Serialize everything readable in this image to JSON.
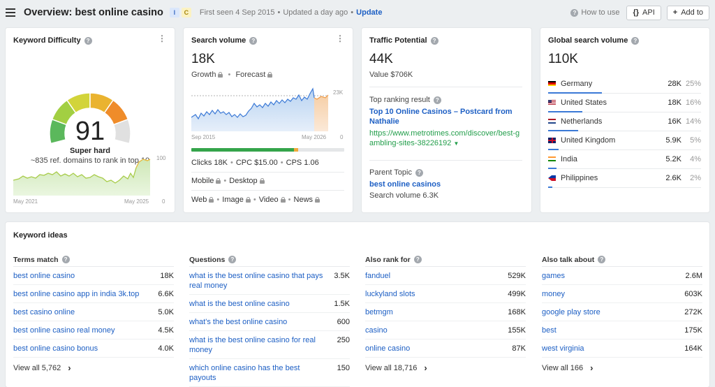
{
  "header": {
    "title": "Overview: best online casino",
    "intent_i": "I",
    "intent_c": "C",
    "first_seen": "First seen 4 Sep 2015",
    "updated": "Updated a day ago",
    "update_link": "Update",
    "how_to": "How to use",
    "api_label": "API",
    "api_glyph": "{}",
    "add_label": "Add to",
    "add_glyph": "+"
  },
  "kd": {
    "title": "Keyword Difficulty",
    "value": "91",
    "label": "Super hard",
    "desc": "~835 ref. domains to rank in top 10",
    "chart_max": "100",
    "chart_min": "0",
    "x_start": "May 2021",
    "x_end": "May 2025",
    "gauge_colors": [
      "#5bb85c",
      "#a2cf42",
      "#d2d43a",
      "#eab32f",
      "#ef8c2a",
      "#e0e0e0"
    ]
  },
  "sv": {
    "title": "Search volume",
    "value": "18K",
    "growth": "Growth",
    "forecast": "Forecast",
    "chart_max": "23K",
    "chart_min": "0",
    "x_start": "Sep 2015",
    "x_end": "May 2026",
    "clicks": "Clicks 18K",
    "cpc": "CPC $15.00",
    "cps": "CPS 1.06",
    "mobile": "Mobile",
    "desktop": "Desktop",
    "web": "Web",
    "image": "Image",
    "video": "Video",
    "news": "News",
    "click_share": {
      "organic": 0.67,
      "paid": 0.03,
      "none": 0.3
    }
  },
  "tp": {
    "title": "Traffic Potential",
    "value": "44K",
    "value_label": "Value $706K",
    "top_result_label": "Top ranking result",
    "top_result_title": "Top 10 Online Casinos – Postcard from Nathalie",
    "top_result_url": "https://www.metrotimes.com/discover/best-gambling-sites-38226192",
    "parent_topic_label": "Parent Topic",
    "parent_topic": "best online casinos",
    "parent_sv": "Search volume 6.3K"
  },
  "gsv": {
    "title": "Global search volume",
    "value": "110K",
    "countries": [
      {
        "name": "Germany",
        "volume": "28K",
        "pct": "25%",
        "share": 0.25,
        "flag": "de"
      },
      {
        "name": "United States",
        "volume": "18K",
        "pct": "16%",
        "share": 0.16,
        "flag": "us"
      },
      {
        "name": "Netherlands",
        "volume": "16K",
        "pct": "14%",
        "share": 0.14,
        "flag": "nl"
      },
      {
        "name": "United Kingdom",
        "volume": "5.9K",
        "pct": "5%",
        "share": 0.05,
        "flag": "gb"
      },
      {
        "name": "India",
        "volume": "5.2K",
        "pct": "4%",
        "share": 0.04,
        "flag": "in"
      },
      {
        "name": "Philippines",
        "volume": "2.6K",
        "pct": "2%",
        "share": 0.02,
        "flag": "ph"
      }
    ]
  },
  "ideas": {
    "title": "Keyword ideas",
    "columns": [
      {
        "heading": "Terms match",
        "rows": [
          {
            "kw": "best online casino",
            "vol": "18K"
          },
          {
            "kw": "best online casino app in india 3k.top",
            "vol": "6.6K"
          },
          {
            "kw": "best casino online",
            "vol": "5.0K"
          },
          {
            "kw": "best online casino real money",
            "vol": "4.5K"
          },
          {
            "kw": "best online casino bonus",
            "vol": "4.0K"
          }
        ],
        "view_all": "View all 5,762"
      },
      {
        "heading": "Questions",
        "rows": [
          {
            "kw": "what is the best online casino that pays real money",
            "vol": "3.5K"
          },
          {
            "kw": "what is the best online casino",
            "vol": "1.5K"
          },
          {
            "kw": "what's the best online casino",
            "vol": "600"
          },
          {
            "kw": "what is the best online casino for real money",
            "vol": "250"
          },
          {
            "kw": "which online casino has the best payouts",
            "vol": "150"
          }
        ],
        "view_all": ""
      },
      {
        "heading": "Also rank for",
        "rows": [
          {
            "kw": "fanduel",
            "vol": "529K"
          },
          {
            "kw": "luckyland slots",
            "vol": "499K"
          },
          {
            "kw": "betmgm",
            "vol": "168K"
          },
          {
            "kw": "casino",
            "vol": "155K"
          },
          {
            "kw": "online casino",
            "vol": "87K"
          }
        ],
        "view_all": "View all 18,716"
      },
      {
        "heading": "Also talk about",
        "rows": [
          {
            "kw": "games",
            "vol": "2.6M"
          },
          {
            "kw": "money",
            "vol": "603K"
          },
          {
            "kw": "google play store",
            "vol": "272K"
          },
          {
            "kw": "best",
            "vol": "175K"
          },
          {
            "kw": "west virginia",
            "vol": "164K"
          }
        ],
        "view_all": "View all 166"
      }
    ]
  }
}
